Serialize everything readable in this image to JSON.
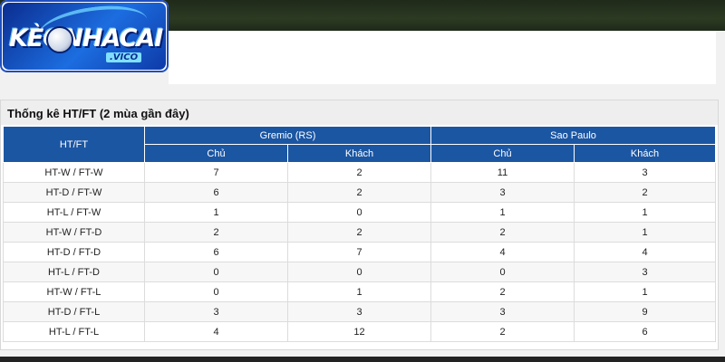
{
  "logo": {
    "main_text": "KÈONHACAI",
    "sub_text": ".VICO"
  },
  "panel": {
    "title": "Thống kê HT/FT (2 mùa gần đây)"
  },
  "table": {
    "htft_header": "HT/FT",
    "teams": [
      "Gremio (RS)",
      "Sao Paulo"
    ],
    "sub_headers": [
      "Chủ",
      "Khách",
      "Chủ",
      "Khách"
    ],
    "rows": [
      {
        "label": "HT-W / FT-W",
        "values": [
          "7",
          "2",
          "11",
          "3"
        ]
      },
      {
        "label": "HT-D / FT-W",
        "values": [
          "6",
          "2",
          "3",
          "2"
        ]
      },
      {
        "label": "HT-L / FT-W",
        "values": [
          "1",
          "0",
          "1",
          "1"
        ]
      },
      {
        "label": "HT-W / FT-D",
        "values": [
          "2",
          "2",
          "2",
          "1"
        ]
      },
      {
        "label": "HT-D / FT-D",
        "values": [
          "6",
          "7",
          "4",
          "4"
        ]
      },
      {
        "label": "HT-L / FT-D",
        "values": [
          "0",
          "0",
          "0",
          "3"
        ]
      },
      {
        "label": "HT-W / FT-L",
        "values": [
          "0",
          "1",
          "2",
          "1"
        ]
      },
      {
        "label": "HT-D / FT-L",
        "values": [
          "3",
          "3",
          "3",
          "9"
        ]
      },
      {
        "label": "HT-L / FT-L",
        "values": [
          "4",
          "12",
          "2",
          "6"
        ]
      }
    ]
  }
}
